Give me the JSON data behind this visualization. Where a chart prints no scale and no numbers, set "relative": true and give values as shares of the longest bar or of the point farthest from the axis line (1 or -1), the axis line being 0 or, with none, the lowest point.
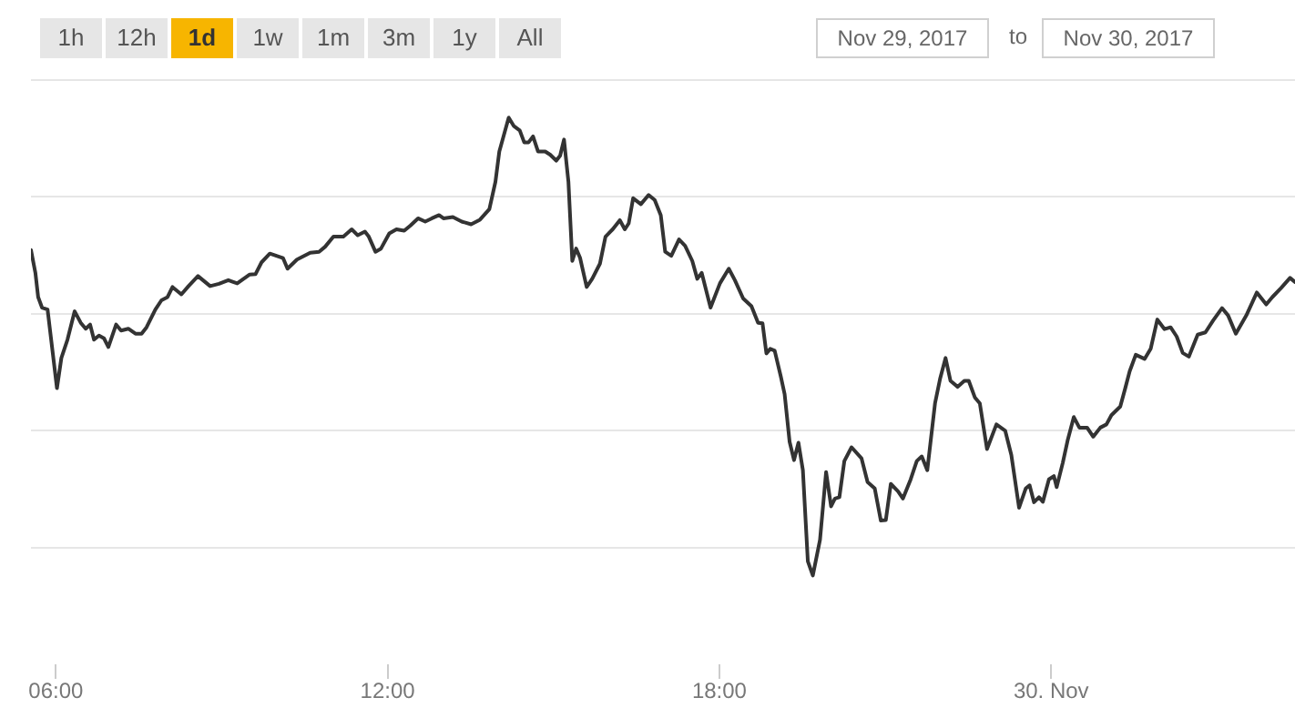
{
  "chart_data": {
    "type": "line",
    "relative": true,
    "color": "#333333",
    "x": [
      5.55,
      5.63,
      5.68,
      5.75,
      5.85,
      6.02,
      6.1,
      6.21,
      6.34,
      6.45,
      6.54,
      6.62,
      6.69,
      6.78,
      6.87,
      6.95,
      7.09,
      7.18,
      7.31,
      7.44,
      7.55,
      7.64,
      7.8,
      7.91,
      8.02,
      8.11,
      8.27,
      8.4,
      8.57,
      8.79,
      8.95,
      9.12,
      9.28,
      9.5,
      9.61,
      9.72,
      9.87,
      10.11,
      10.19,
      10.36,
      10.6,
      10.76,
      10.87,
      11.02,
      11.2,
      11.35,
      11.46,
      11.59,
      11.66,
      11.78,
      11.88,
      12.03,
      12.16,
      12.3,
      12.41,
      12.55,
      12.68,
      12.8,
      12.93,
      13.01,
      13.18,
      13.34,
      13.51,
      13.67,
      13.84,
      13.95,
      14.02,
      14.19,
      14.28,
      14.39,
      14.47,
      14.55,
      14.63,
      14.72,
      14.85,
      14.94,
      15.05,
      15.12,
      15.19,
      15.27,
      15.34,
      15.41,
      15.48,
      15.6,
      15.7,
      15.84,
      15.94,
      16.07,
      16.2,
      16.29,
      16.36,
      16.44,
      16.58,
      16.72,
      16.83,
      16.94,
      17.02,
      17.13,
      17.27,
      17.38,
      17.51,
      17.6,
      17.68,
      17.84,
      18.01,
      18.17,
      18.28,
      18.43,
      18.58,
      18.7,
      18.78,
      18.85,
      18.92,
      19.0,
      19.11,
      19.18,
      19.27,
      19.35,
      19.43,
      19.51,
      19.6,
      19.69,
      19.82,
      19.93,
      20.02,
      20.09,
      20.17,
      20.26,
      20.39,
      20.57,
      20.68,
      20.81,
      20.92,
      21.01,
      21.1,
      21.23,
      21.32,
      21.46,
      21.57,
      21.66,
      21.76,
      21.9,
      21.99,
      22.09,
      22.18,
      22.31,
      22.43,
      22.51,
      22.62,
      22.71,
      22.84,
      23.01,
      23.17,
      23.28,
      23.42,
      23.54,
      23.61,
      23.69,
      23.78,
      23.85,
      23.96,
      24.05,
      24.1,
      24.21,
      24.3,
      24.41,
      24.51,
      24.65,
      24.76,
      24.89,
      25.0,
      25.09,
      25.25,
      25.34,
      25.42,
      25.53,
      25.69,
      25.8,
      25.92,
      26.05,
      26.16,
      26.27,
      26.38,
      26.49,
      26.65,
      26.79,
      26.93,
      27.09,
      27.2,
      27.34,
      27.53,
      27.72,
      27.89,
      28.0,
      28.16,
      28.32,
      28.41
    ],
    "values": [
      0.711,
      0.661,
      0.608,
      0.585,
      0.581,
      0.409,
      0.475,
      0.515,
      0.577,
      0.552,
      0.539,
      0.548,
      0.515,
      0.524,
      0.518,
      0.499,
      0.548,
      0.535,
      0.539,
      0.528,
      0.528,
      0.542,
      0.581,
      0.601,
      0.608,
      0.63,
      0.614,
      0.632,
      0.654,
      0.632,
      0.637,
      0.645,
      0.638,
      0.657,
      0.658,
      0.684,
      0.703,
      0.693,
      0.67,
      0.69,
      0.705,
      0.707,
      0.718,
      0.74,
      0.74,
      0.756,
      0.743,
      0.751,
      0.74,
      0.707,
      0.714,
      0.747,
      0.756,
      0.753,
      0.764,
      0.78,
      0.773,
      0.78,
      0.787,
      0.78,
      0.783,
      0.773,
      0.767,
      0.777,
      0.8,
      0.86,
      0.926,
      1,
      0.982,
      0.972,
      0.946,
      0.946,
      0.959,
      0.926,
      0.926,
      0.919,
      0.906,
      0.917,
      0.952,
      0.86,
      0.687,
      0.714,
      0.694,
      0.63,
      0.648,
      0.681,
      0.74,
      0.756,
      0.776,
      0.756,
      0.769,
      0.824,
      0.811,
      0.831,
      0.82,
      0.787,
      0.707,
      0.698,
      0.734,
      0.72,
      0.687,
      0.648,
      0.661,
      0.585,
      0.638,
      0.67,
      0.645,
      0.605,
      0.588,
      0.552,
      0.551,
      0.485,
      0.495,
      0.491,
      0.435,
      0.396,
      0.292,
      0.252,
      0.29,
      0.23,
      0.031,
      0,
      0.078,
      0.226,
      0.151,
      0.168,
      0.171,
      0.25,
      0.28,
      0.256,
      0.204,
      0.19,
      0.12,
      0.121,
      0.2,
      0.184,
      0.168,
      0.21,
      0.25,
      0.26,
      0.23,
      0.376,
      0.429,
      0.475,
      0.425,
      0.412,
      0.425,
      0.425,
      0.389,
      0.376,
      0.276,
      0.33,
      0.316,
      0.263,
      0.148,
      0.19,
      0.197,
      0.16,
      0.171,
      0.161,
      0.21,
      0.217,
      0.193,
      0.246,
      0.296,
      0.346,
      0.323,
      0.323,
      0.303,
      0.323,
      0.33,
      0.35,
      0.369,
      0.409,
      0.446,
      0.482,
      0.473,
      0.495,
      0.559,
      0.538,
      0.542,
      0.522,
      0.486,
      0.478,
      0.526,
      0.531,
      0.557,
      0.584,
      0.568,
      0.528,
      0.568,
      0.618,
      0.592,
      0.608,
      0.628,
      0.65,
      0.641
    ],
    "xlim": [
      5.55,
      28.41
    ],
    "xticks": [
      {
        "value": 6,
        "label": "06:00"
      },
      {
        "value": 12,
        "label": "12:00"
      },
      {
        "value": 18,
        "label": "18:00"
      },
      {
        "value": 24,
        "label": "30. Nov"
      }
    ],
    "grid": "y",
    "annotations": [
      "1h",
      "12h",
      "1d",
      "1w",
      "1m",
      "3m",
      "1y",
      "All",
      "Nov 29, 2017",
      "to",
      "Nov 30, 2017"
    ]
  }
}
